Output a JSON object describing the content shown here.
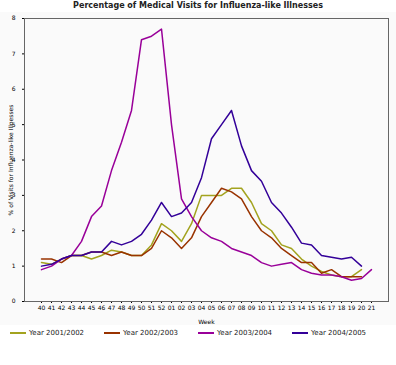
{
  "chart_data": {
    "type": "line",
    "title": "Percentage of Medical Visits for Influenza-like Illnesses",
    "x_label": "Week",
    "y_label": "% of Visits for Influenza-like Illnesses",
    "categories": [
      "40",
      "41",
      "42",
      "43",
      "44",
      "45",
      "46",
      "47",
      "48",
      "49",
      "50",
      "51",
      "52",
      "01",
      "02",
      "03",
      "04",
      "05",
      "06",
      "07",
      "08",
      "09",
      "10",
      "11",
      "12",
      "13",
      "14",
      "15",
      "16",
      "17",
      "18",
      "19",
      "20",
      "21"
    ],
    "ylim": [
      0,
      8
    ],
    "yticks": [
      0,
      1,
      2,
      3,
      4,
      5,
      6,
      7,
      8
    ],
    "grid": false,
    "legend": "bottom",
    "series": [
      {
        "name": "Year 2001/2002",
        "color": "#a3a31f",
        "values": [
          1.1,
          1.05,
          1.2,
          1.3,
          1.3,
          1.2,
          1.3,
          1.45,
          1.4,
          1.3,
          1.3,
          1.6,
          2.2,
          2.0,
          1.7,
          2.2,
          3.0,
          3.0,
          3.0,
          3.2,
          3.2,
          2.8,
          2.2,
          2.0,
          1.6,
          1.5,
          1.2,
          1.0,
          0.85,
          0.75,
          0.7,
          0.7,
          0.9,
          null
        ]
      },
      {
        "name": "Year 2002/2003",
        "color": "#993300",
        "values": [
          1.2,
          1.2,
          1.1,
          1.3,
          1.3,
          1.4,
          1.4,
          1.3,
          1.4,
          1.3,
          1.3,
          1.5,
          2.0,
          1.8,
          1.5,
          1.8,
          2.4,
          2.8,
          3.2,
          3.1,
          2.9,
          2.4,
          2.0,
          1.8,
          1.5,
          1.3,
          1.1,
          1.1,
          0.8,
          0.9,
          0.7,
          0.7,
          0.7,
          null
        ]
      },
      {
        "name": "Year 2003/2004",
        "color": "#990099",
        "values": [
          0.9,
          1.0,
          1.2,
          1.3,
          1.7,
          2.4,
          2.7,
          3.7,
          4.5,
          5.4,
          7.4,
          7.5,
          7.7,
          5.0,
          2.9,
          2.4,
          2.0,
          1.8,
          1.7,
          1.5,
          1.4,
          1.3,
          1.1,
          1.0,
          1.05,
          1.1,
          0.9,
          0.8,
          0.75,
          0.75,
          0.7,
          0.6,
          0.65,
          0.9
        ]
      },
      {
        "name": "Year 2004/2005",
        "color": "#330099",
        "values": [
          1.0,
          1.05,
          1.2,
          1.3,
          1.3,
          1.4,
          1.4,
          1.7,
          1.6,
          1.7,
          1.9,
          2.3,
          2.8,
          2.4,
          2.5,
          2.8,
          3.5,
          4.6,
          5.0,
          5.4,
          4.4,
          3.7,
          3.4,
          2.8,
          2.5,
          2.1,
          1.65,
          1.6,
          1.3,
          1.25,
          1.2,
          1.25,
          1.0,
          null
        ]
      }
    ]
  }
}
